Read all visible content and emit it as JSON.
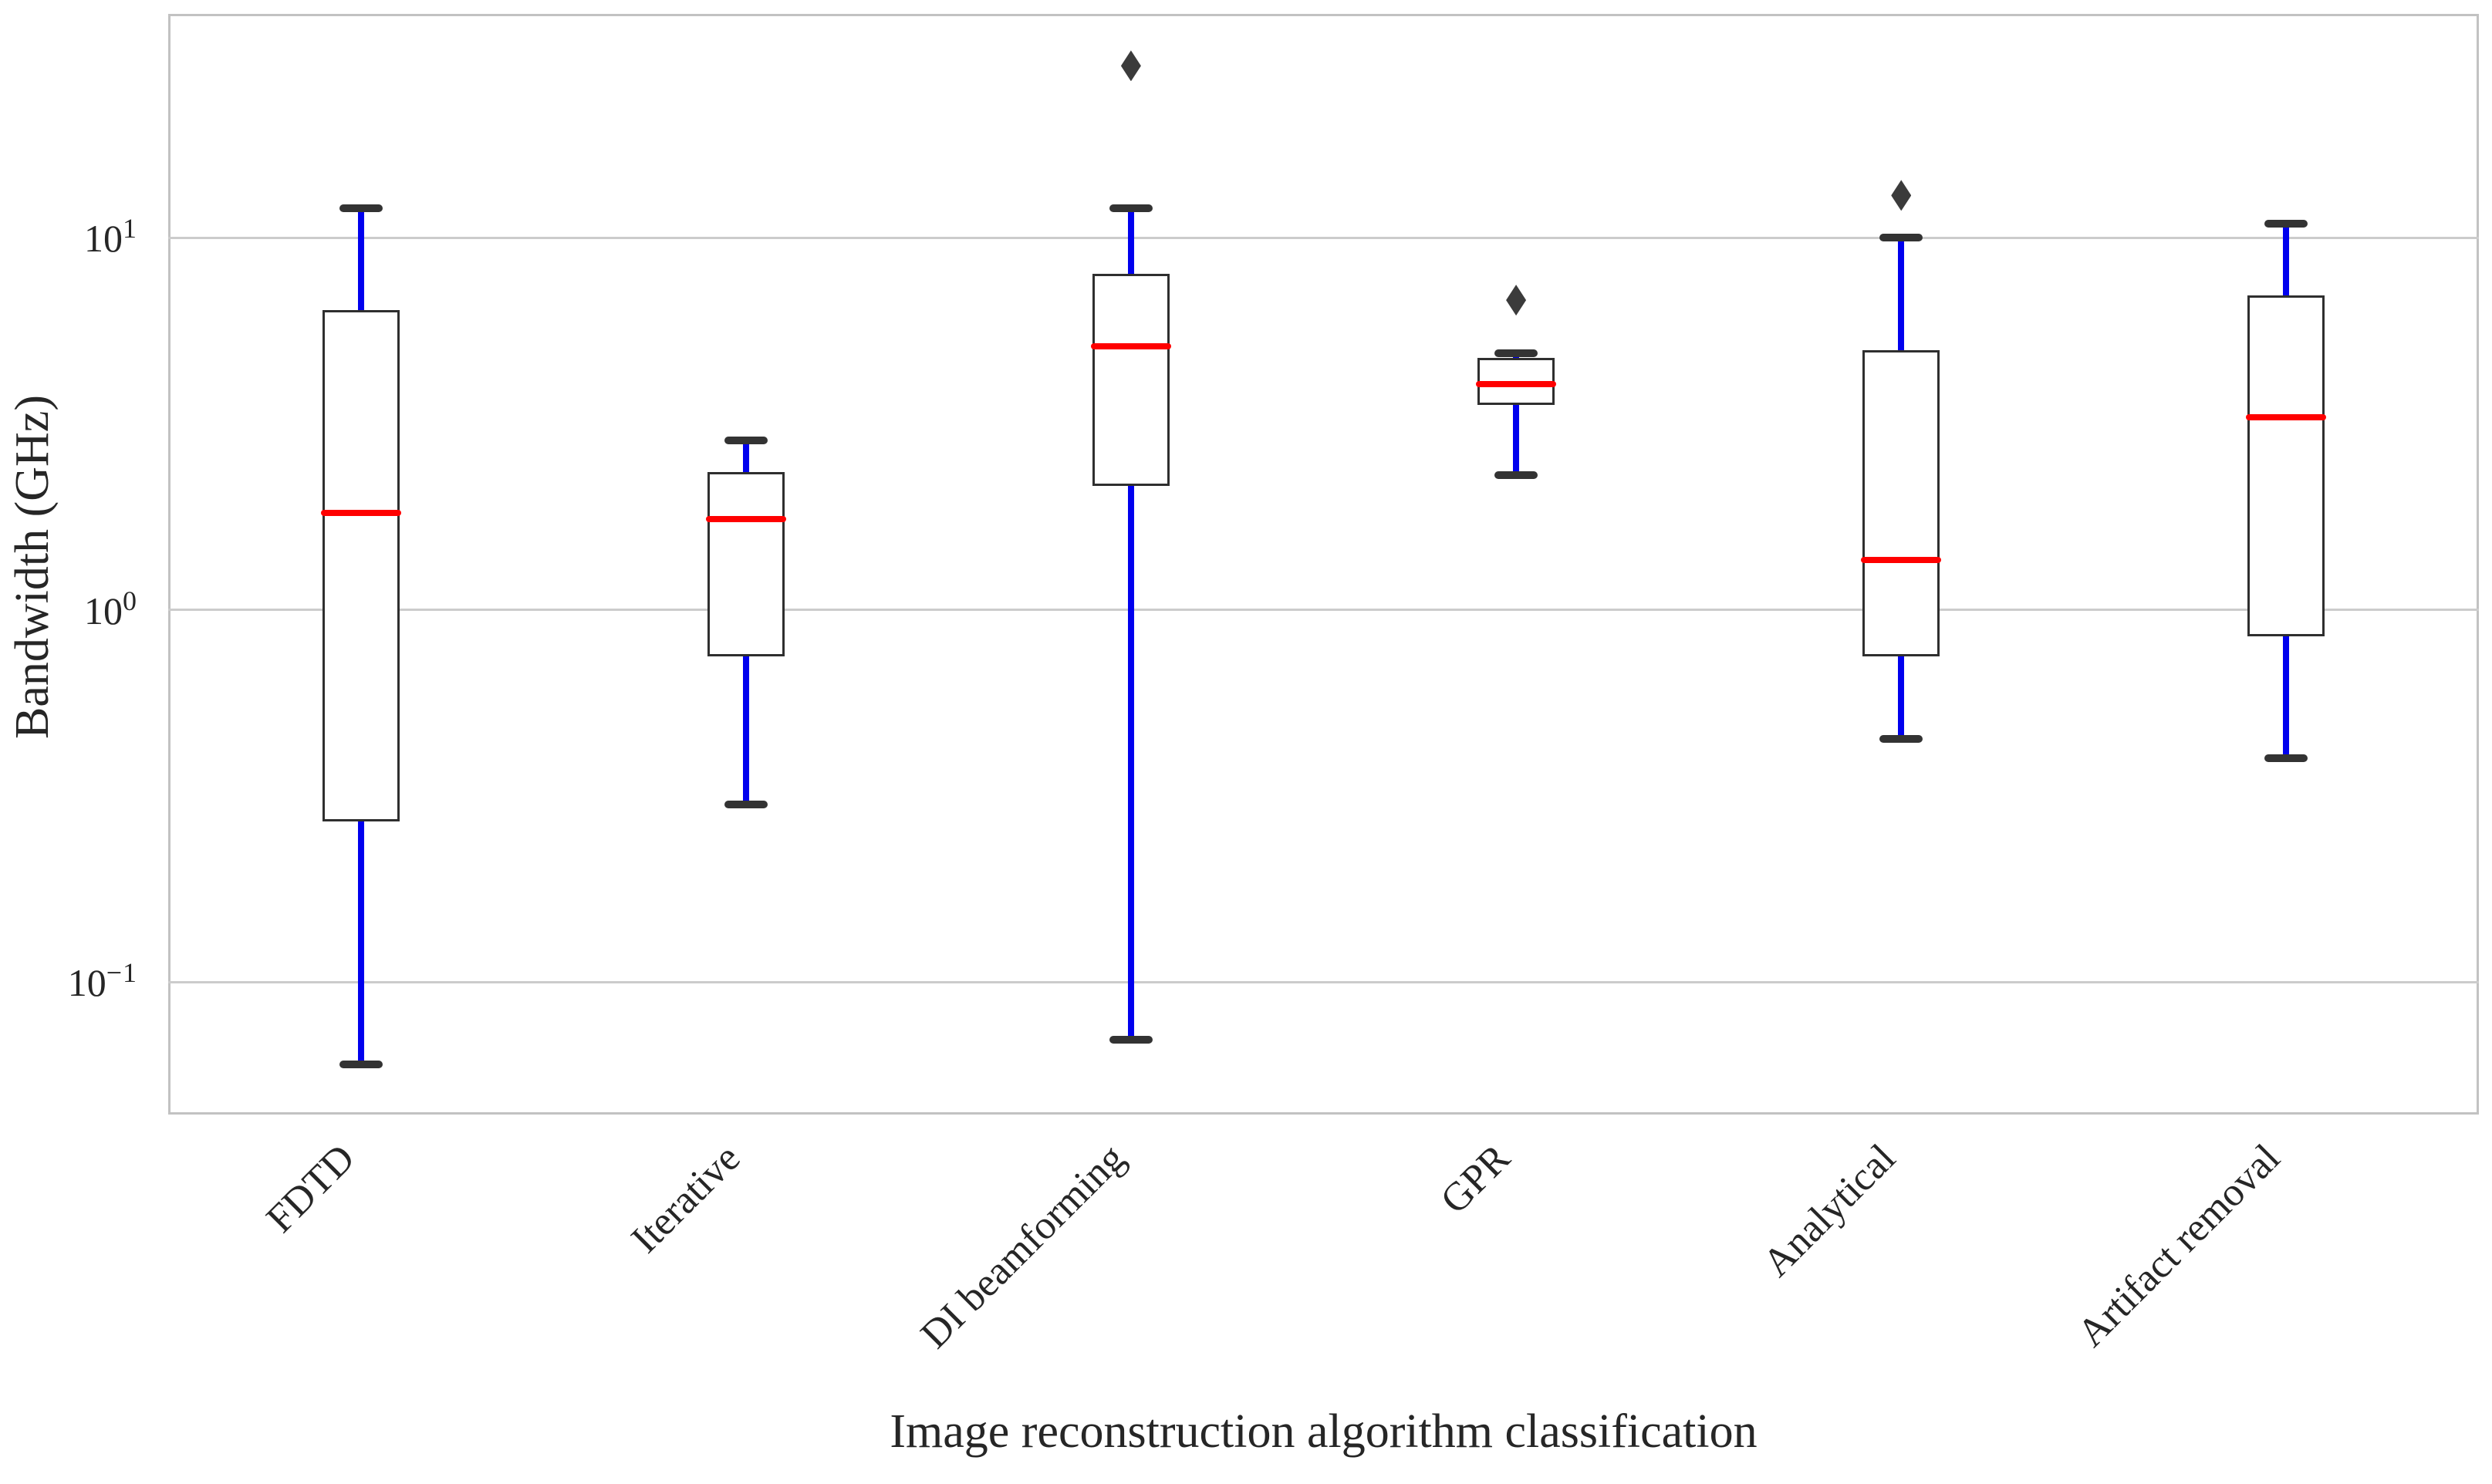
{
  "chart_data": {
    "type": "box",
    "title": "",
    "x_axis": {
      "label": "Image reconstruction algorithm classification",
      "tick_rotation_deg": 45
    },
    "y_axis": {
      "label": "Bandwidth (GHz)",
      "scale": "log",
      "unit": "GHz",
      "ylim": [
        0.044,
        40
      ],
      "ticks": [
        {
          "mantissa": "10",
          "exponent": "1",
          "value": 10
        },
        {
          "mantissa": "10",
          "exponent": "0",
          "value": 1
        },
        {
          "mantissa": "10",
          "exponent": "−1",
          "value": 0.1
        }
      ],
      "grid": "horizontal"
    },
    "categories": [
      "FDTD",
      "Iterative",
      "DI beamforming",
      "GPR",
      "Analytical",
      "Artifact removal"
    ],
    "boxes": [
      {
        "label": "FDTD",
        "whislo": 0.06,
        "q1": 0.27,
        "med": 1.82,
        "q3": 6.4,
        "whishi": 12,
        "outliers": []
      },
      {
        "label": "Iterative",
        "whislo": 0.3,
        "q1": 0.75,
        "med": 1.75,
        "q3": 2.35,
        "whishi": 2.85,
        "outliers": []
      },
      {
        "label": "DI beamforming",
        "whislo": 0.07,
        "q1": 2.15,
        "med": 5.1,
        "q3": 8.0,
        "whishi": 12,
        "outliers": [
          29
        ]
      },
      {
        "label": "GPR",
        "whislo": 2.3,
        "q1": 3.55,
        "med": 4.05,
        "q3": 4.75,
        "whishi": 4.9,
        "outliers": [
          6.8
        ]
      },
      {
        "label": "Analytical",
        "whislo": 0.45,
        "q1": 0.75,
        "med": 1.36,
        "q3": 5.0,
        "whishi": 10,
        "outliers": [
          13
        ]
      },
      {
        "label": "Artifact removal",
        "whislo": 0.4,
        "q1": 0.85,
        "med": 3.3,
        "q3": 7.0,
        "whishi": 10.9,
        "outliers": []
      }
    ],
    "style": {
      "whisker_color": "#0000ee",
      "median_color": "#ff0000",
      "box_edge_color": "#2f2f2f",
      "box_fill": "#ffffff",
      "cap_color": "#333333",
      "outlier_color": "#3b3b3b",
      "grid_color": "#cccccc",
      "frame_color": "#c2c2c2",
      "text_color": "#262626",
      "background": "#ffffff"
    }
  }
}
